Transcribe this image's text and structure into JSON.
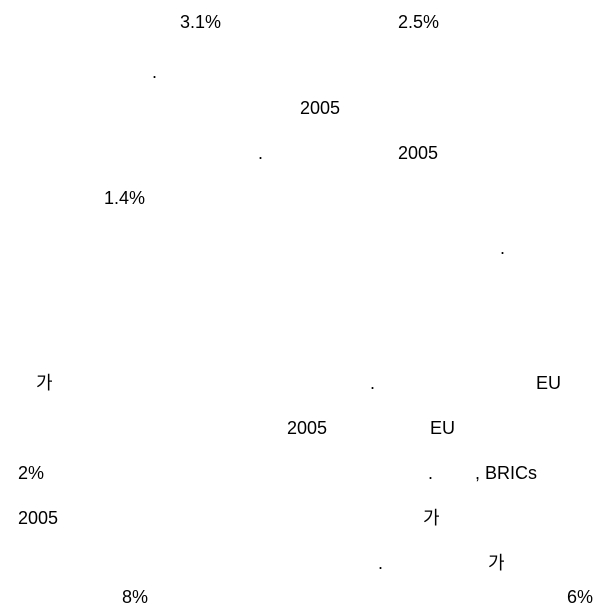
{
  "paragraphs": [
    {
      "lines": [
        [
          "3.1%",
          "2.5%"
        ],
        [
          "."
        ],
        [
          "2005"
        ],
        [
          ".",
          "2005"
        ],
        [
          "1.4%"
        ],
        [
          "."
        ]
      ]
    },
    {
      "lines": [
        [
          "가",
          ".",
          "EU"
        ],
        [
          "2005",
          "EU"
        ],
        [
          "2%",
          ".",
          ", BRICs"
        ],
        [
          "2005",
          "가"
        ],
        [
          ".",
          "가"
        ],
        [
          "8%",
          "6%"
        ]
      ]
    }
  ]
}
